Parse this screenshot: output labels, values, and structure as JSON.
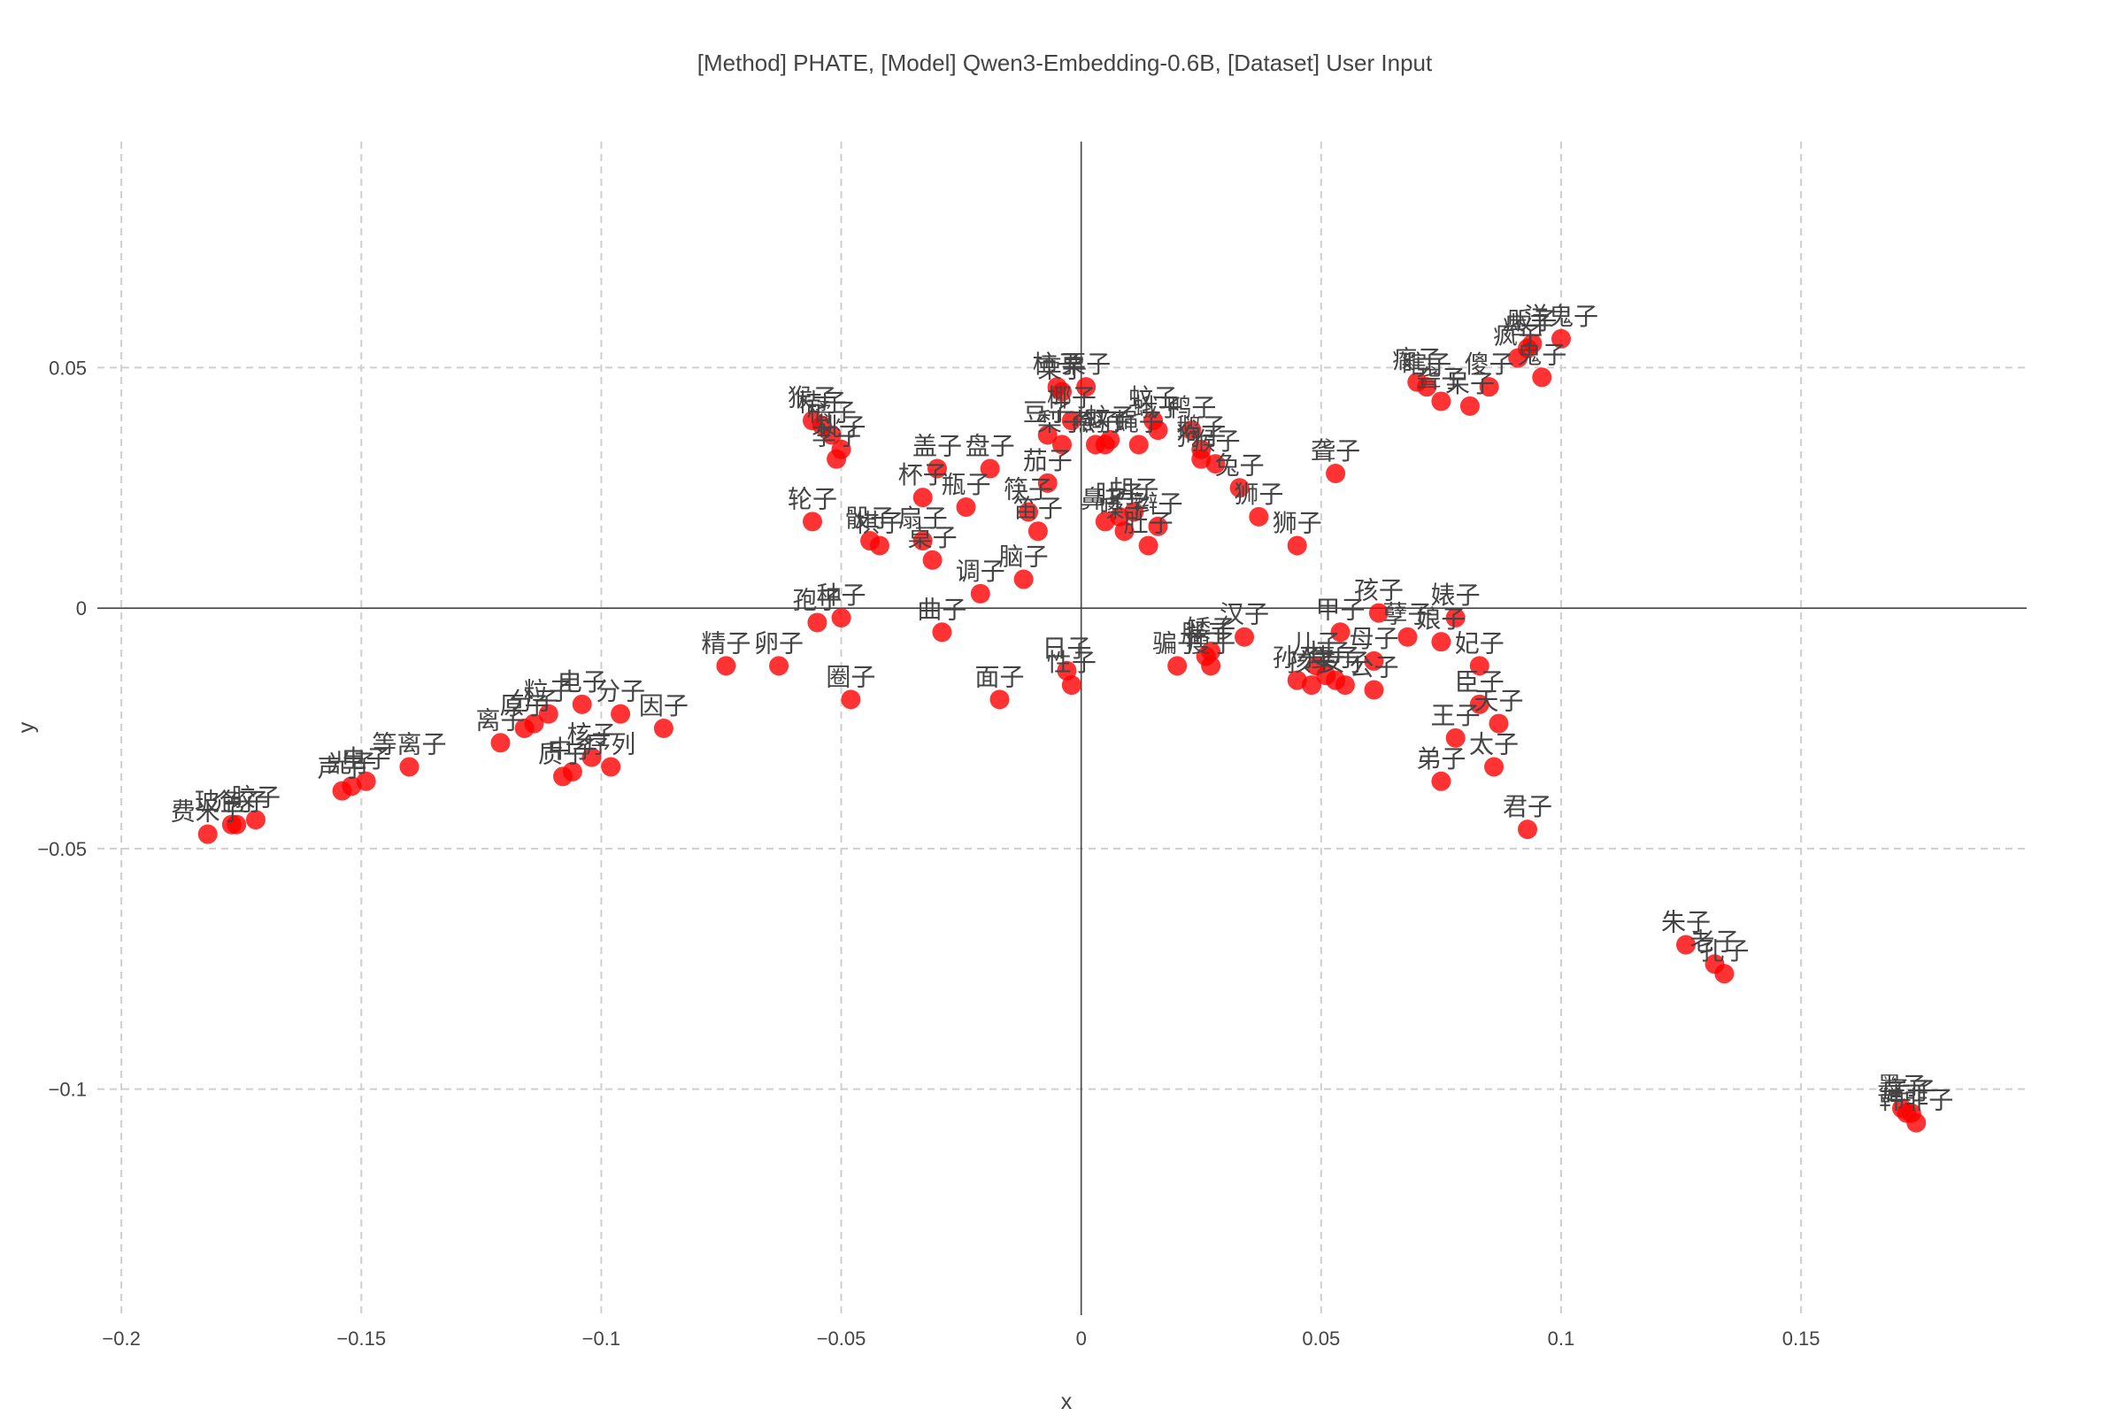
{
  "chart_data": {
    "type": "scatter",
    "title": "[Method] PHATE, [Model] Qwen3-Embedding-0.6B, [Dataset] User Input",
    "xlabel": "x",
    "ylabel": "y",
    "xlim": [
      -0.205,
      0.197
    ],
    "ylim": [
      -0.147,
      0.097
    ],
    "x_ticks": [
      -0.2,
      -0.15,
      -0.1,
      -0.05,
      0,
      0.05,
      0.1,
      0.15
    ],
    "x_tick_labels": [
      "−0.2",
      "−0.15",
      "−0.1",
      "−0.05",
      "0",
      "0.05",
      "0.1",
      "0.15"
    ],
    "y_ticks": [
      0.05,
      0,
      -0.05,
      -0.1
    ],
    "y_tick_labels": [
      "0.05",
      "0",
      "−0.05",
      "−0.1"
    ],
    "grid": true,
    "marker_color": "#ff0000",
    "points": [
      {
        "x": -0.182,
        "y": -0.047,
        "label": "费米子"
      },
      {
        "x": -0.177,
        "y": -0.045,
        "label": "玻色子"
      },
      {
        "x": -0.176,
        "y": -0.045,
        "label": "介子"
      },
      {
        "x": -0.172,
        "y": -0.044,
        "label": "胶子"
      },
      {
        "x": -0.154,
        "y": -0.038,
        "label": "声子"
      },
      {
        "x": -0.152,
        "y": -0.037,
        "label": "光子"
      },
      {
        "x": -0.149,
        "y": -0.036,
        "label": "电子"
      },
      {
        "x": -0.14,
        "y": -0.033,
        "label": "等离子"
      },
      {
        "x": -0.121,
        "y": -0.028,
        "label": "离子"
      },
      {
        "x": -0.116,
        "y": -0.025,
        "label": "原子"
      },
      {
        "x": -0.114,
        "y": -0.024,
        "label": "分子"
      },
      {
        "x": -0.111,
        "y": -0.022,
        "label": "粒子"
      },
      {
        "x": -0.108,
        "y": -0.035,
        "label": "质子"
      },
      {
        "x": -0.106,
        "y": -0.034,
        "label": "中子"
      },
      {
        "x": -0.104,
        "y": -0.02,
        "label": "电子"
      },
      {
        "x": -0.102,
        "y": -0.031,
        "label": "核子"
      },
      {
        "x": -0.098,
        "y": -0.033,
        "label": "序列"
      },
      {
        "x": -0.096,
        "y": -0.022,
        "label": "分子"
      },
      {
        "x": -0.087,
        "y": -0.025,
        "label": "因子"
      },
      {
        "x": -0.074,
        "y": -0.012,
        "label": "精子"
      },
      {
        "x": -0.063,
        "y": -0.012,
        "label": "卵子"
      },
      {
        "x": -0.055,
        "y": -0.003,
        "label": "孢子"
      },
      {
        "x": -0.05,
        "y": -0.002,
        "label": "种子"
      },
      {
        "x": -0.048,
        "y": -0.019,
        "label": "圈子"
      },
      {
        "x": -0.056,
        "y": 0.018,
        "label": "轮子"
      },
      {
        "x": -0.056,
        "y": 0.039,
        "label": "猴子"
      },
      {
        "x": -0.054,
        "y": 0.038,
        "label": "桔子"
      },
      {
        "x": -0.052,
        "y": 0.036,
        "label": "橘子"
      },
      {
        "x": -0.05,
        "y": 0.033,
        "label": "桃子"
      },
      {
        "x": -0.051,
        "y": 0.031,
        "label": "李子"
      },
      {
        "x": -0.044,
        "y": 0.014,
        "label": "骰子"
      },
      {
        "x": -0.042,
        "y": 0.013,
        "label": "棋子"
      },
      {
        "x": -0.033,
        "y": 0.014,
        "label": "扇子"
      },
      {
        "x": -0.031,
        "y": 0.01,
        "label": "桌子"
      },
      {
        "x": -0.033,
        "y": 0.023,
        "label": "杯子"
      },
      {
        "x": -0.03,
        "y": 0.029,
        "label": "盖子"
      },
      {
        "x": -0.024,
        "y": 0.021,
        "label": "瓶子"
      },
      {
        "x": -0.019,
        "y": 0.029,
        "label": "盘子"
      },
      {
        "x": -0.021,
        "y": 0.003,
        "label": "调子"
      },
      {
        "x": -0.029,
        "y": -0.005,
        "label": "曲子"
      },
      {
        "x": -0.017,
        "y": -0.019,
        "label": "面子"
      },
      {
        "x": -0.012,
        "y": 0.006,
        "label": "脑子"
      },
      {
        "x": -0.011,
        "y": 0.02,
        "label": "筷子"
      },
      {
        "x": -0.009,
        "y": 0.016,
        "label": "笛子"
      },
      {
        "x": -0.007,
        "y": 0.026,
        "label": "茄子"
      },
      {
        "x": -0.007,
        "y": 0.036,
        "label": "豆子"
      },
      {
        "x": -0.005,
        "y": 0.046,
        "label": "柿子"
      },
      {
        "x": -0.004,
        "y": 0.045,
        "label": "栗子"
      },
      {
        "x": -0.002,
        "y": 0.039,
        "label": "椰子"
      },
      {
        "x": -0.004,
        "y": 0.034,
        "label": "梨子"
      },
      {
        "x": 0.001,
        "y": 0.046,
        "label": "栗子"
      },
      {
        "x": 0.003,
        "y": 0.034,
        "label": "燕子"
      },
      {
        "x": 0.005,
        "y": 0.034,
        "label": "鸽子"
      },
      {
        "x": 0.006,
        "y": 0.035,
        "label": "蚊子"
      },
      {
        "x": 0.012,
        "y": 0.034,
        "label": "蝇子"
      },
      {
        "x": 0.015,
        "y": 0.039,
        "label": "蚊子"
      },
      {
        "x": 0.016,
        "y": 0.037,
        "label": "蛾子"
      },
      {
        "x": 0.023,
        "y": 0.037,
        "label": "鸭子"
      },
      {
        "x": 0.025,
        "y": 0.033,
        "label": "鹅子"
      },
      {
        "x": 0.025,
        "y": 0.031,
        "label": "狗子"
      },
      {
        "x": 0.028,
        "y": 0.03,
        "label": "猴子"
      },
      {
        "x": 0.033,
        "y": 0.025,
        "label": "兔子"
      },
      {
        "x": 0.037,
        "y": 0.019,
        "label": "狮子"
      },
      {
        "x": 0.005,
        "y": 0.018,
        "label": "鼻子"
      },
      {
        "x": 0.008,
        "y": 0.019,
        "label": "肚子"
      },
      {
        "x": 0.009,
        "y": 0.016,
        "label": "嗓子"
      },
      {
        "x": 0.011,
        "y": 0.02,
        "label": "胡子"
      },
      {
        "x": 0.014,
        "y": 0.013,
        "label": "肚子"
      },
      {
        "x": 0.016,
        "y": 0.017,
        "label": "辫子"
      },
      {
        "x": -0.003,
        "y": -0.013,
        "label": "日子"
      },
      {
        "x": -0.002,
        "y": -0.016,
        "label": "性子"
      },
      {
        "x": 0.02,
        "y": -0.012,
        "label": "骗子"
      },
      {
        "x": 0.026,
        "y": -0.01,
        "label": "胖子"
      },
      {
        "x": 0.027,
        "y": -0.012,
        "label": "瘦子"
      },
      {
        "x": 0.027,
        "y": -0.009,
        "label": "矮子"
      },
      {
        "x": 0.034,
        "y": -0.006,
        "label": "汉子"
      },
      {
        "x": 0.045,
        "y": 0.013,
        "label": "狮子"
      },
      {
        "x": 0.053,
        "y": 0.028,
        "label": "聋子"
      },
      {
        "x": 0.045,
        "y": -0.015,
        "label": "孙子"
      },
      {
        "x": 0.048,
        "y": -0.016,
        "label": "孩子"
      },
      {
        "x": 0.049,
        "y": -0.012,
        "label": "儿子"
      },
      {
        "x": 0.051,
        "y": -0.014,
        "label": "小子"
      },
      {
        "x": 0.053,
        "y": -0.015,
        "label": "妻子"
      },
      {
        "x": 0.055,
        "y": -0.016,
        "label": "女子"
      },
      {
        "x": 0.054,
        "y": -0.005,
        "label": "甲子"
      },
      {
        "x": 0.061,
        "y": -0.011,
        "label": "母子"
      },
      {
        "x": 0.061,
        "y": -0.017,
        "label": "公子"
      },
      {
        "x": 0.062,
        "y": -0.001,
        "label": "孩子"
      },
      {
        "x": 0.068,
        "y": -0.006,
        "label": "孽子"
      },
      {
        "x": 0.075,
        "y": -0.007,
        "label": "娘子"
      },
      {
        "x": 0.078,
        "y": -0.002,
        "label": "婊子"
      },
      {
        "x": 0.083,
        "y": -0.012,
        "label": "妃子"
      },
      {
        "x": 0.083,
        "y": -0.02,
        "label": "臣子"
      },
      {
        "x": 0.087,
        "y": -0.024,
        "label": "天子"
      },
      {
        "x": 0.078,
        "y": -0.027,
        "label": "王子"
      },
      {
        "x": 0.086,
        "y": -0.033,
        "label": "太子"
      },
      {
        "x": 0.075,
        "y": -0.036,
        "label": "弟子"
      },
      {
        "x": 0.093,
        "y": -0.046,
        "label": "君子"
      },
      {
        "x": 0.07,
        "y": 0.047,
        "label": "瘸子"
      },
      {
        "x": 0.072,
        "y": 0.046,
        "label": "瞎子"
      },
      {
        "x": 0.075,
        "y": 0.043,
        "label": "聋子"
      },
      {
        "x": 0.081,
        "y": 0.042,
        "label": "呆子"
      },
      {
        "x": 0.085,
        "y": 0.046,
        "label": "傻子"
      },
      {
        "x": 0.091,
        "y": 0.052,
        "label": "疯子"
      },
      {
        "x": 0.093,
        "y": 0.054,
        "label": "痞子"
      },
      {
        "x": 0.094,
        "y": 0.055,
        "label": "贩子"
      },
      {
        "x": 0.096,
        "y": 0.048,
        "label": "鬼子"
      },
      {
        "x": 0.1,
        "y": 0.056,
        "label": "洋鬼子"
      },
      {
        "x": 0.126,
        "y": -0.07,
        "label": "朱子"
      },
      {
        "x": 0.132,
        "y": -0.074,
        "label": "老子"
      },
      {
        "x": 0.134,
        "y": -0.076,
        "label": "孔子"
      },
      {
        "x": 0.171,
        "y": -0.104,
        "label": "墨子"
      },
      {
        "x": 0.172,
        "y": -0.105,
        "label": "庄子"
      },
      {
        "x": 0.173,
        "y": -0.105,
        "label": "孟子"
      },
      {
        "x": 0.174,
        "y": -0.107,
        "label": "韩非子"
      }
    ]
  }
}
